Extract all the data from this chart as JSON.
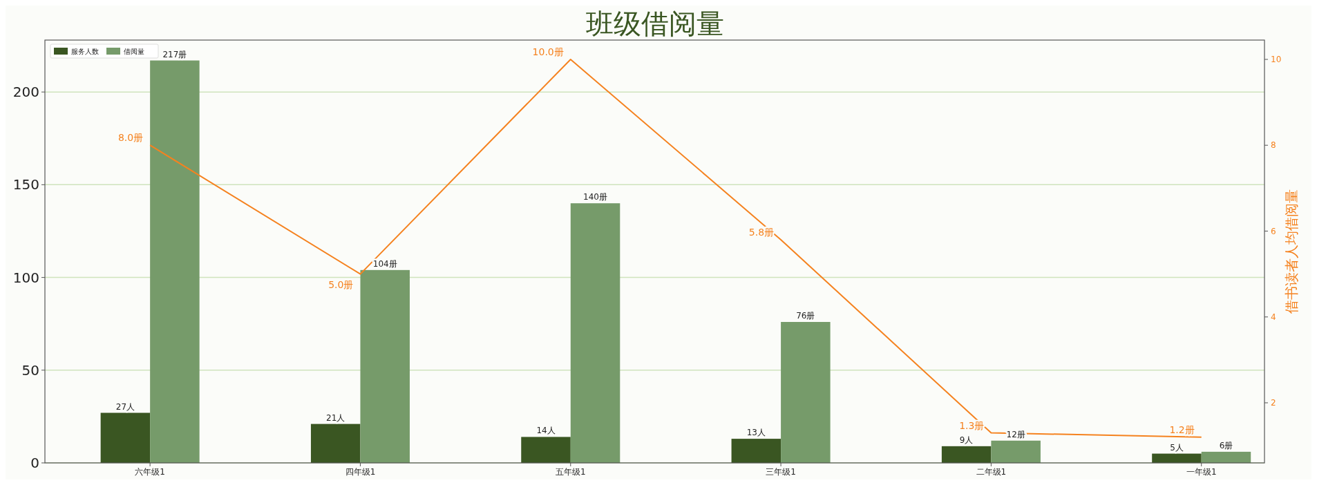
{
  "chart_data": {
    "type": "bar",
    "title": "班级借阅量",
    "y2label": "借书读者人均借阅量",
    "categories": [
      "六年级1",
      "四年级1",
      "五年级1",
      "三年级1",
      "二年级1",
      "一年级1"
    ],
    "series": [
      {
        "name": "服务人数",
        "color": "#3a5622",
        "values": [
          27,
          21,
          14,
          13,
          9,
          5
        ],
        "value_labels": [
          "27人",
          "21人",
          "14人",
          "13人",
          "9人",
          "5人"
        ]
      },
      {
        "name": "借阅量",
        "color": "#769b6a",
        "values": [
          217,
          104,
          140,
          76,
          12,
          6
        ],
        "value_labels": [
          "217册",
          "104册",
          "140册",
          "76册",
          "12册",
          "6册"
        ]
      },
      {
        "type": "line",
        "axis": "y2",
        "color": "#f5821f",
        "values": [
          8.0,
          5.0,
          10.0,
          5.8,
          1.3,
          1.2
        ],
        "value_labels": [
          "8.0册",
          "5.0册",
          "10.0册",
          "5.8册",
          "1.3册",
          "1.2册"
        ]
      }
    ],
    "ylim": [
      0,
      228
    ],
    "yticks": [
      0,
      50,
      100,
      150,
      200
    ],
    "y2lim": [
      0.6,
      10.45
    ],
    "y2ticks": [
      2,
      4,
      6,
      8,
      10
    ],
    "grid": "y",
    "legend": "top left"
  }
}
